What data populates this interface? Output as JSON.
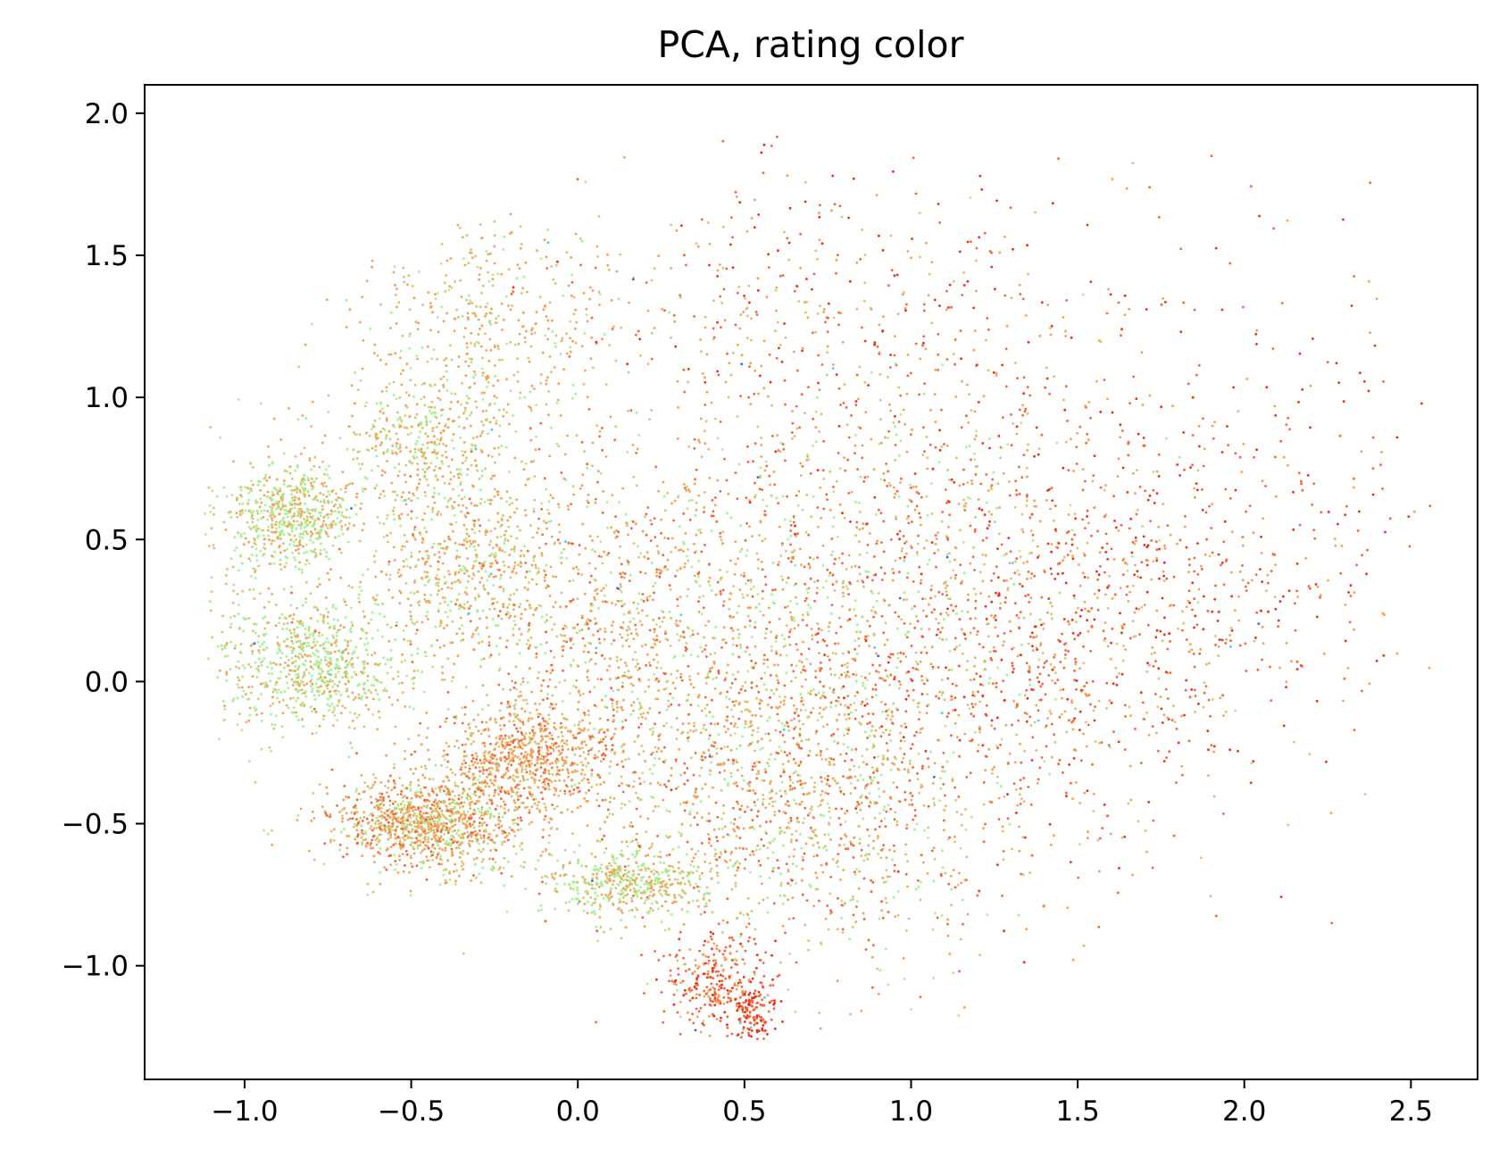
{
  "chart_data": {
    "type": "scatter",
    "title": "PCA, rating color",
    "xlabel": "",
    "ylabel": "",
    "xlim": [
      -1.3,
      2.7
    ],
    "ylim": [
      -1.4,
      2.1
    ],
    "x_ticks": [
      "−1.0",
      "−0.5",
      "0.0",
      "0.5",
      "1.0",
      "1.5",
      "2.0",
      "2.5"
    ],
    "x_tick_values": [
      -1.0,
      -0.5,
      0.0,
      0.5,
      1.0,
      1.5,
      2.0,
      2.5
    ],
    "y_ticks": [
      "−1.0",
      "−0.5",
      "0.0",
      "0.5",
      "1.0",
      "1.5",
      "2.0"
    ],
    "y_tick_values": [
      -1.0,
      -0.5,
      0.0,
      0.5,
      1.0,
      1.5,
      2.0
    ],
    "grid": false,
    "legend": "none",
    "colormap": "rainbow",
    "point_colors": {
      "green": "#a6f08f",
      "tan": "#d9c274",
      "orange": "#f5a055",
      "red_orange": "#f7643a",
      "red": "#ee2d17",
      "cyan": "#3ad9e0",
      "blue": "#2a6bf2"
    },
    "clusters": [
      {
        "cx": -0.85,
        "cy": 0.58,
        "sx": 0.1,
        "sy": 0.09,
        "n": 600,
        "palette": [
          "green",
          "green",
          "tan",
          "orange"
        ]
      },
      {
        "cx": -0.78,
        "cy": 0.06,
        "sx": 0.13,
        "sy": 0.11,
        "n": 700,
        "palette": [
          "green",
          "green",
          "green",
          "tan",
          "orange"
        ]
      },
      {
        "cx": -0.45,
        "cy": -0.5,
        "sx": 0.14,
        "sy": 0.08,
        "n": 1100,
        "palette": [
          "green",
          "tan",
          "orange",
          "orange",
          "red_orange"
        ]
      },
      {
        "cx": -0.15,
        "cy": -0.27,
        "sx": 0.12,
        "sy": 0.1,
        "n": 700,
        "palette": [
          "tan",
          "orange",
          "red_orange",
          "orange"
        ]
      },
      {
        "cx": 0.15,
        "cy": -0.7,
        "sx": 0.13,
        "sy": 0.06,
        "n": 500,
        "palette": [
          "green",
          "green",
          "tan",
          "orange"
        ]
      },
      {
        "cx": 0.42,
        "cy": -1.07,
        "sx": 0.08,
        "sy": 0.09,
        "n": 300,
        "palette": [
          "orange",
          "red_orange",
          "red",
          "red_orange"
        ]
      },
      {
        "cx": 0.53,
        "cy": -1.15,
        "sx": 0.03,
        "sy": 0.06,
        "n": 120,
        "palette": [
          "red_orange",
          "red"
        ]
      },
      {
        "cx": -0.45,
        "cy": 0.85,
        "sx": 0.15,
        "sy": 0.12,
        "n": 450,
        "palette": [
          "green",
          "tan",
          "orange"
        ]
      },
      {
        "cx": -0.35,
        "cy": 0.4,
        "sx": 0.15,
        "sy": 0.12,
        "n": 450,
        "palette": [
          "tan",
          "orange",
          "orange",
          "green"
        ]
      },
      {
        "cx": -0.25,
        "cy": 1.25,
        "sx": 0.2,
        "sy": 0.18,
        "n": 400,
        "palette": [
          "green",
          "tan",
          "orange",
          "orange"
        ]
      },
      {
        "cx": 0.1,
        "cy": 0.15,
        "sx": 0.35,
        "sy": 0.35,
        "n": 1300,
        "palette": [
          "green",
          "tan",
          "orange",
          "orange",
          "red_orange"
        ]
      },
      {
        "cx": 0.6,
        "cy": -0.3,
        "sx": 0.3,
        "sy": 0.3,
        "n": 900,
        "palette": [
          "green",
          "tan",
          "orange",
          "red_orange"
        ]
      },
      {
        "cx": 0.9,
        "cy": 0.4,
        "sx": 0.4,
        "sy": 0.4,
        "n": 1000,
        "palette": [
          "tan",
          "orange",
          "red_orange",
          "red_orange",
          "green"
        ]
      },
      {
        "cx": 1.4,
        "cy": 0.1,
        "sx": 0.35,
        "sy": 0.35,
        "n": 800,
        "palette": [
          "orange",
          "red_orange",
          "red_orange",
          "tan",
          "red"
        ]
      },
      {
        "cx": 0.6,
        "cy": 1.3,
        "sx": 0.35,
        "sy": 0.3,
        "n": 350,
        "palette": [
          "orange",
          "red_orange",
          "tan",
          "red"
        ]
      },
      {
        "cx": 1.9,
        "cy": 0.4,
        "sx": 0.3,
        "sy": 0.3,
        "n": 300,
        "palette": [
          "red_orange",
          "red",
          "orange"
        ]
      },
      {
        "cx": 1.5,
        "cy": 1.1,
        "sx": 0.45,
        "sy": 0.4,
        "n": 200,
        "palette": [
          "red_orange",
          "red",
          "orange"
        ]
      },
      {
        "cx": 0.8,
        "cy": -0.6,
        "sx": 0.3,
        "sy": 0.25,
        "n": 400,
        "palette": [
          "orange",
          "red_orange",
          "green",
          "tan"
        ]
      },
      {
        "cx": 2.3,
        "cy": 0.8,
        "sx": 0.15,
        "sy": 0.35,
        "n": 40,
        "palette": [
          "red_orange",
          "red"
        ]
      },
      {
        "cx": -1.0,
        "cy": 0.3,
        "sx": 0.08,
        "sy": 0.3,
        "n": 120,
        "palette": [
          "green",
          "tan"
        ]
      }
    ]
  }
}
